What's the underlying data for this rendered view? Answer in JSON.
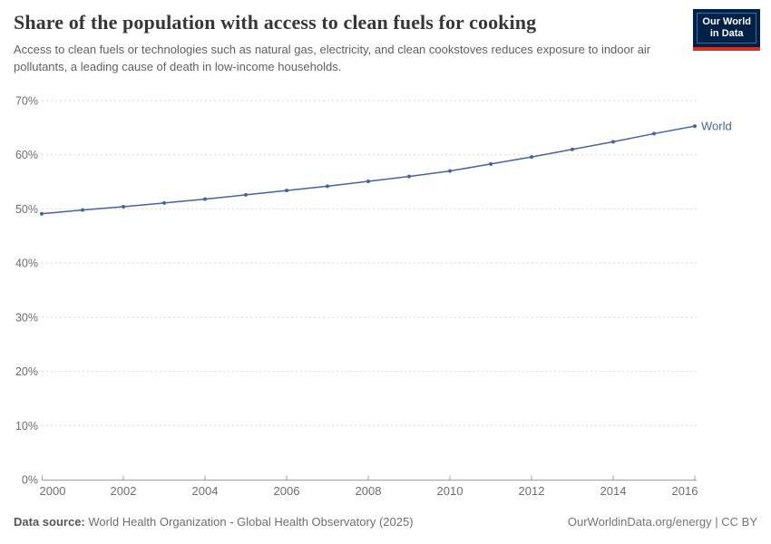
{
  "header": {
    "title": "Share of the population with access to clean fuels for cooking",
    "subtitle": "Access to clean fuels or technologies such as natural gas, electricity, and clean cookstoves reduces exposure to indoor air pollutants, a leading cause of death in low-income households.",
    "logo": {
      "line1": "Our World",
      "line2": "in Data"
    }
  },
  "chart_data": {
    "type": "line",
    "title": "Share of the population with access to clean fuels for cooking",
    "xlabel": "",
    "ylabel": "",
    "xlim": [
      2000,
      2016
    ],
    "ylim": [
      0,
      70
    ],
    "x": [
      2000,
      2001,
      2002,
      2003,
      2004,
      2005,
      2006,
      2007,
      2008,
      2009,
      2010,
      2011,
      2012,
      2013,
      2014,
      2015,
      2016
    ],
    "series": [
      {
        "name": "World",
        "color": "#44649f",
        "values": [
          49.1,
          49.8,
          50.4,
          51.1,
          51.8,
          52.6,
          53.4,
          54.2,
          55.1,
          56.0,
          57.0,
          58.3,
          59.6,
          61.0,
          62.4,
          63.9,
          65.3
        ]
      }
    ],
    "x_ticks": [
      2000,
      2002,
      2004,
      2006,
      2008,
      2010,
      2012,
      2014,
      2016
    ],
    "y_ticks": [
      0,
      10,
      20,
      30,
      40,
      50,
      60,
      70
    ],
    "y_tick_suffix": "%",
    "grid": "horizontal-dashed",
    "legend_position": "end-of-line",
    "entity_label": "World"
  },
  "footer": {
    "datasource_label": "Data source:",
    "datasource_value": "World Health Organization - Global Health Observatory (2025)",
    "link": "OurWorldinData.org/energy",
    "separator": "|",
    "license": "CC BY"
  },
  "colors": {
    "line": "#44649f",
    "logo_navy": "#002147",
    "logo_red": "#d93025",
    "grid": "#d7d7d7",
    "axis": "#9e9e9e",
    "tick_label": "#6d6d6d"
  }
}
